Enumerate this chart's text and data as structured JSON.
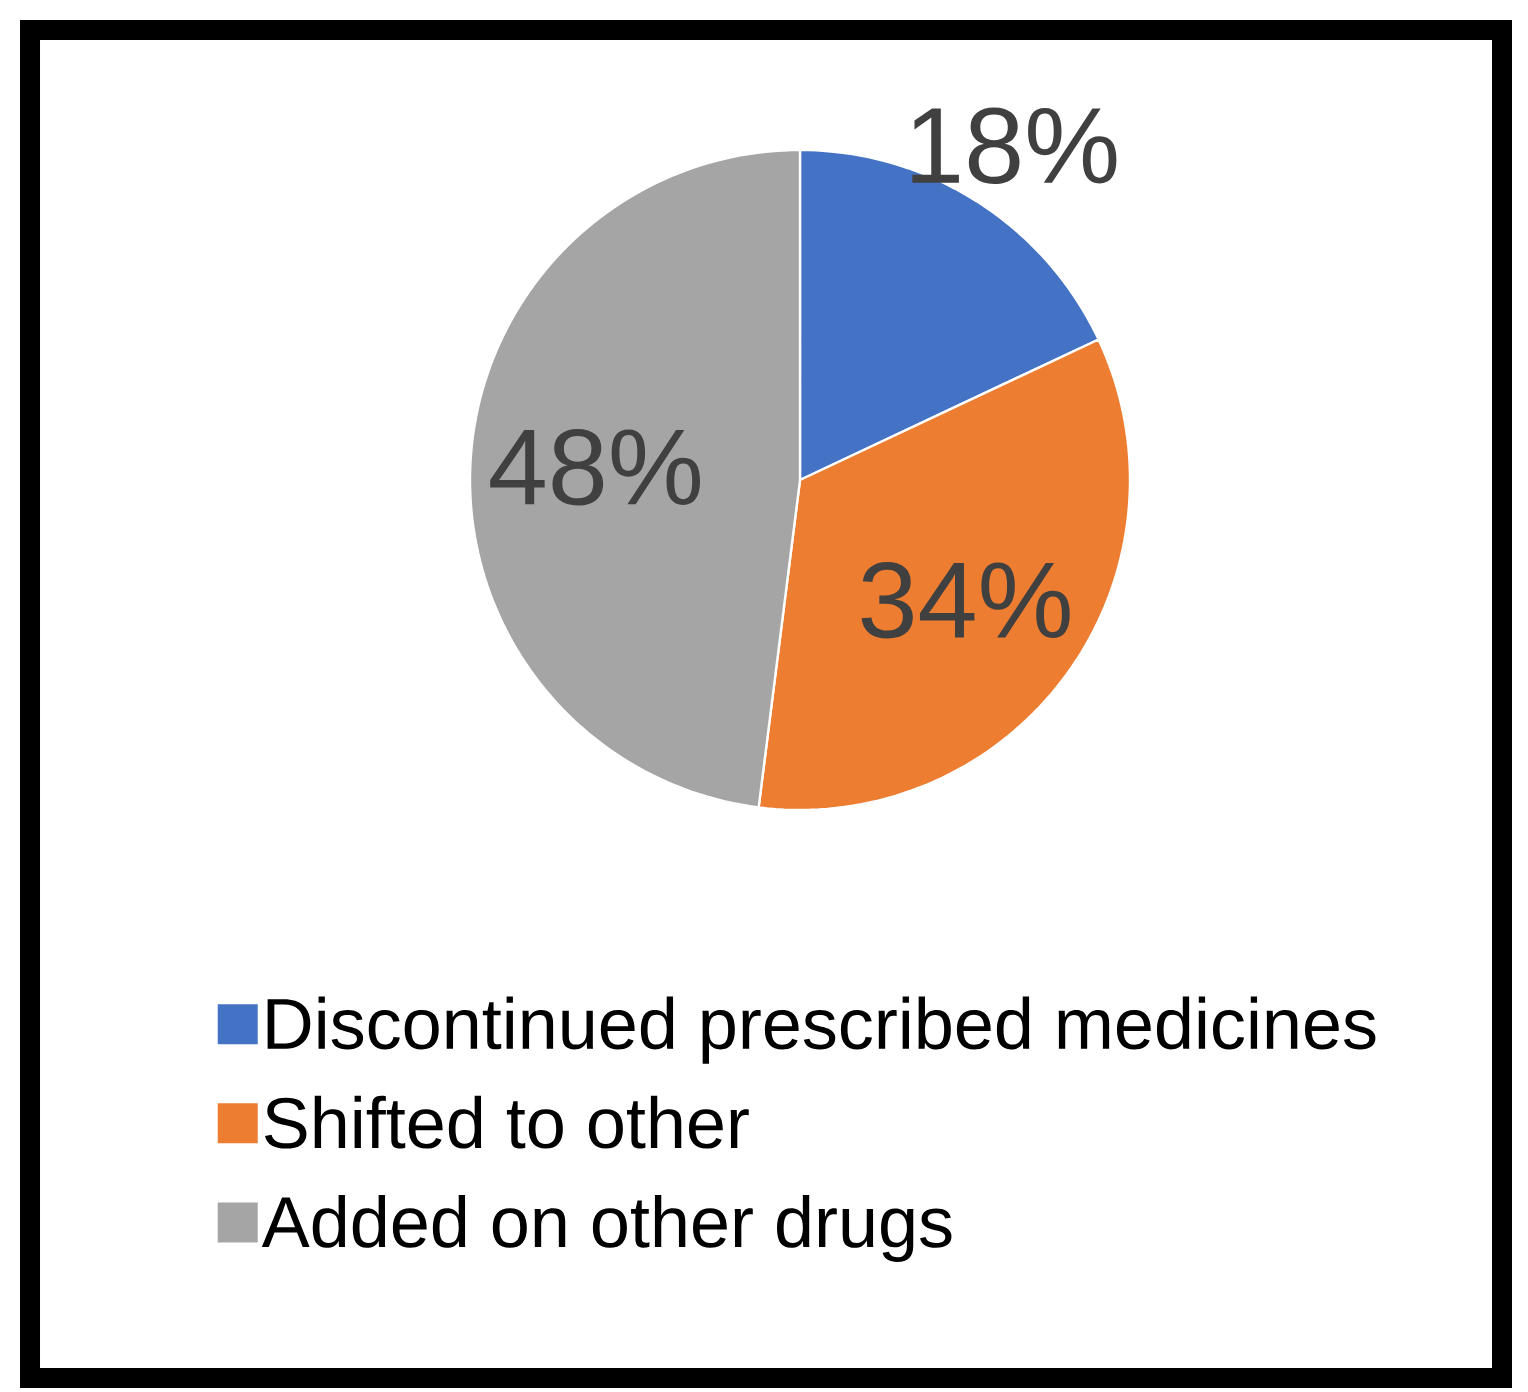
{
  "chart_data": {
    "type": "pie",
    "categories": [
      "Discontinued prescribed medicines",
      "Shifted to other",
      "Added on other drugs"
    ],
    "values": [
      18,
      34,
      48
    ],
    "colors": [
      "#4472c4",
      "#ed7d31",
      "#a5a5a5"
    ],
    "value_labels": [
      "18%",
      "34%",
      "48%"
    ],
    "legend": "bottom"
  }
}
